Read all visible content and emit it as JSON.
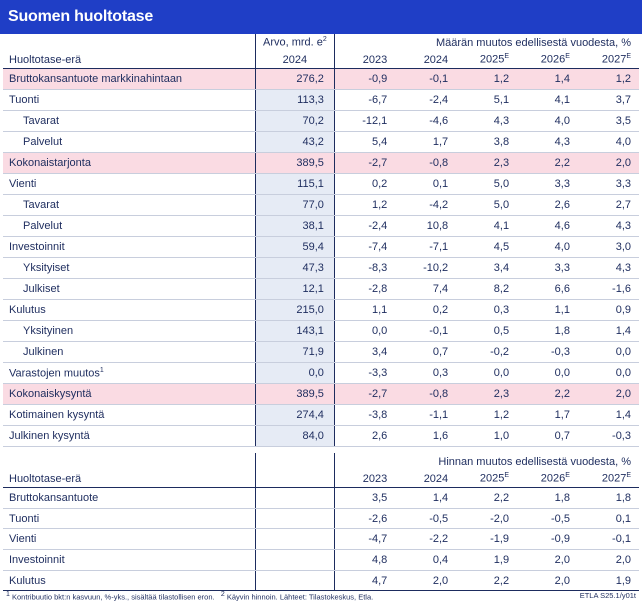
{
  "title": "Suomen huoltotase",
  "table1": {
    "header": {
      "col_name": "Huoltotase-erä",
      "arvo_top": "Arvo, mrd. e",
      "arvo_sup": "2",
      "arvo_year": "2024",
      "change_label": "Määrän muutos edellisestä vuodesta, %",
      "years": [
        "2023",
        "2024",
        "2025",
        "2026",
        "2027"
      ],
      "year_sups": [
        "",
        "",
        "E",
        "E",
        "E"
      ]
    },
    "rows": [
      {
        "name": "Bruttokansantuote markkinahintaan",
        "sup": "",
        "arvo": "276,2",
        "v": [
          "-0,9",
          "-0,1",
          "1,2",
          "1,4",
          "1,2"
        ],
        "hl": true,
        "sub": false
      },
      {
        "name": "Tuonti",
        "sup": "",
        "arvo": "113,3",
        "v": [
          "-6,7",
          "-2,4",
          "5,1",
          "4,1",
          "3,7"
        ],
        "hl": false,
        "sub": false
      },
      {
        "name": "Tavarat",
        "sup": "",
        "arvo": "70,2",
        "v": [
          "-12,1",
          "-4,6",
          "4,3",
          "4,0",
          "3,5"
        ],
        "hl": false,
        "sub": true
      },
      {
        "name": "Palvelut",
        "sup": "",
        "arvo": "43,2",
        "v": [
          "5,4",
          "1,7",
          "3,8",
          "4,3",
          "4,0"
        ],
        "hl": false,
        "sub": true
      },
      {
        "name": "Kokonaistarjonta",
        "sup": "",
        "arvo": "389,5",
        "v": [
          "-2,7",
          "-0,8",
          "2,3",
          "2,2",
          "2,0"
        ],
        "hl": true,
        "sub": false
      },
      {
        "name": "Vienti",
        "sup": "",
        "arvo": "115,1",
        "v": [
          "0,2",
          "0,1",
          "5,0",
          "3,3",
          "3,3"
        ],
        "hl": false,
        "sub": false
      },
      {
        "name": "Tavarat",
        "sup": "",
        "arvo": "77,0",
        "v": [
          "1,2",
          "-4,2",
          "5,0",
          "2,6",
          "2,7"
        ],
        "hl": false,
        "sub": true
      },
      {
        "name": "Palvelut",
        "sup": "",
        "arvo": "38,1",
        "v": [
          "-2,4",
          "10,8",
          "4,1",
          "4,6",
          "4,3"
        ],
        "hl": false,
        "sub": true
      },
      {
        "name": "Investoinnit",
        "sup": "",
        "arvo": "59,4",
        "v": [
          "-7,4",
          "-7,1",
          "4,5",
          "4,0",
          "3,0"
        ],
        "hl": false,
        "sub": false
      },
      {
        "name": "Yksityiset",
        "sup": "",
        "arvo": "47,3",
        "v": [
          "-8,3",
          "-10,2",
          "3,4",
          "3,3",
          "4,3"
        ],
        "hl": false,
        "sub": true
      },
      {
        "name": "Julkiset",
        "sup": "",
        "arvo": "12,1",
        "v": [
          "-2,8",
          "7,4",
          "8,2",
          "6,6",
          "-1,6"
        ],
        "hl": false,
        "sub": true
      },
      {
        "name": "Kulutus",
        "sup": "",
        "arvo": "215,0",
        "v": [
          "1,1",
          "0,2",
          "0,3",
          "1,1",
          "0,9"
        ],
        "hl": false,
        "sub": false
      },
      {
        "name": "Yksityinen",
        "sup": "",
        "arvo": "143,1",
        "v": [
          "0,0",
          "-0,1",
          "0,5",
          "1,8",
          "1,4"
        ],
        "hl": false,
        "sub": true
      },
      {
        "name": "Julkinen",
        "sup": "",
        "arvo": "71,9",
        "v": [
          "3,4",
          "0,7",
          "-0,2",
          "-0,3",
          "0,0"
        ],
        "hl": false,
        "sub": true
      },
      {
        "name": "Varastojen muutos",
        "sup": "1",
        "arvo": "0,0",
        "v": [
          "-3,3",
          "0,3",
          "0,0",
          "0,0",
          "0,0"
        ],
        "hl": false,
        "sub": false
      },
      {
        "name": "Kokonaiskysyntä",
        "sup": "",
        "arvo": "389,5",
        "v": [
          "-2,7",
          "-0,8",
          "2,3",
          "2,2",
          "2,0"
        ],
        "hl": true,
        "sub": false
      },
      {
        "name": "Kotimainen kysyntä",
        "sup": "",
        "arvo": "274,4",
        "v": [
          "-3,8",
          "-1,1",
          "1,2",
          "1,7",
          "1,4"
        ],
        "hl": false,
        "sub": false
      },
      {
        "name": "Julkinen kysyntä",
        "sup": "",
        "arvo": "84,0",
        "v": [
          "2,6",
          "1,6",
          "1,0",
          "0,7",
          "-0,3"
        ],
        "hl": false,
        "sub": false
      }
    ]
  },
  "table2": {
    "header": {
      "col_name": "Huoltotase-erä",
      "change_label": "Hinnan muutos edellisestä vuodesta, %",
      "years": [
        "2023",
        "2024",
        "2025",
        "2026",
        "2027"
      ],
      "year_sups": [
        "",
        "",
        "E",
        "E",
        "E"
      ]
    },
    "rows": [
      {
        "name": "Bruttokansantuote",
        "v": [
          "3,5",
          "1,4",
          "2,2",
          "1,8",
          "1,8"
        ]
      },
      {
        "name": "Tuonti",
        "v": [
          "-2,6",
          "-0,5",
          "-2,0",
          "-0,5",
          "0,1"
        ]
      },
      {
        "name": "Vienti",
        "v": [
          "-4,7",
          "-2,2",
          "-1,9",
          "-0,9",
          "-0,1"
        ]
      },
      {
        "name": "Investoinnit",
        "v": [
          "4,8",
          "0,4",
          "1,9",
          "2,0",
          "2,0"
        ]
      },
      {
        "name": "Kulutus",
        "v": [
          "4,7",
          "2,0",
          "2,2",
          "2,0",
          "1,9"
        ]
      }
    ]
  },
  "footer": {
    "note1_sup": "1",
    "note1": "Kontribuutio bkt:n kasvuun, %-yks., sisältää tilastollisen eron.",
    "note2_sup": "2",
    "note2": "Käyvin hinnoin. Lähteet: Tilastokeskus, Etla.",
    "code": "ETLA S25.1/y01t"
  }
}
